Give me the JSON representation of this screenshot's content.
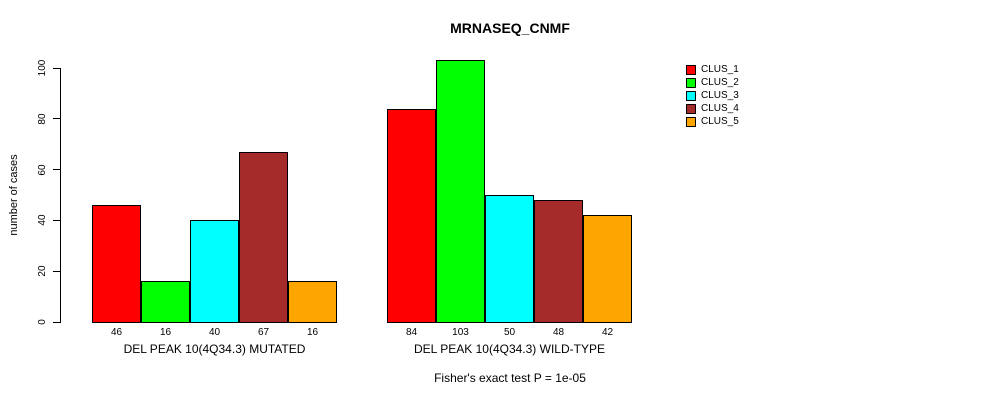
{
  "title": "MRNASEQ_CNMF",
  "y_axis": {
    "label": "number of cases",
    "ticks": [
      0,
      20,
      40,
      60,
      80,
      100
    ]
  },
  "footer": "Fisher's exact test P = 1e-05",
  "legend": {
    "items": [
      {
        "label": "CLUS_1",
        "color": "#FF0000"
      },
      {
        "label": "CLUS_2",
        "color": "#00FF00"
      },
      {
        "label": "CLUS_3",
        "color": "#00FFFF"
      },
      {
        "label": "CLUS_4",
        "color": "#A52A2A"
      },
      {
        "label": "CLUS_5",
        "color": "#FFA500"
      }
    ]
  },
  "chart_data": {
    "type": "bar",
    "title": "MRNASEQ_CNMF",
    "xlabel": "",
    "ylabel": "number of cases",
    "ylim": [
      0,
      100
    ],
    "yticks": [
      0,
      20,
      40,
      60,
      80,
      100
    ],
    "grid": false,
    "legend_position": "right",
    "bar_value_labels": true,
    "annotation": "Fisher's exact test P = 1e-05",
    "categories": [
      "DEL PEAK 10(4Q34.3) MUTATED",
      "DEL PEAK 10(4Q34.3) WILD-TYPE"
    ],
    "series": [
      {
        "name": "CLUS_1",
        "color": "#FF0000",
        "values": [
          46,
          84
        ]
      },
      {
        "name": "CLUS_2",
        "color": "#00FF00",
        "values": [
          16,
          103
        ]
      },
      {
        "name": "CLUS_3",
        "color": "#00FFFF",
        "values": [
          40,
          50
        ]
      },
      {
        "name": "CLUS_4",
        "color": "#A52A2A",
        "values": [
          67,
          48
        ]
      },
      {
        "name": "CLUS_5",
        "color": "#FFA500",
        "values": [
          16,
          42
        ]
      }
    ]
  }
}
